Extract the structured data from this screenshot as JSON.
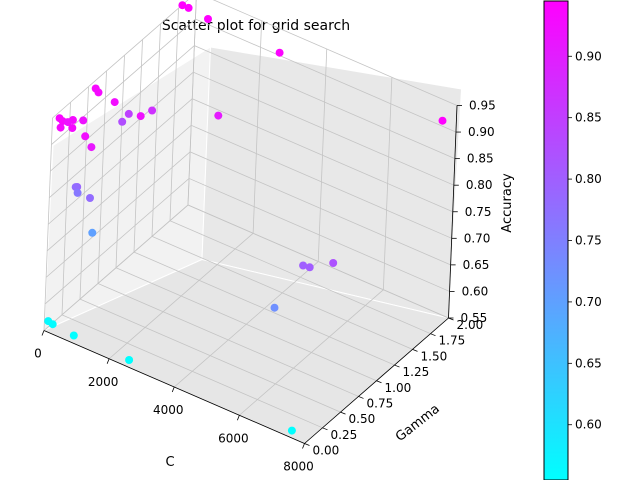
{
  "chart_data": {
    "type": "scatter",
    "title": "Scatter plot for grid search",
    "xlabel": "C",
    "ylabel": "Gamma",
    "zlabel": "Accuracy",
    "xlim": [
      0,
      8000
    ],
    "ylim": [
      0,
      2
    ],
    "zlim": [
      0.55,
      0.95
    ],
    "x_ticks": [
      "0",
      "2000",
      "4000",
      "6000",
      "8000"
    ],
    "y_ticks": [
      "0.00",
      "0.25",
      "0.50",
      "0.75",
      "1.00",
      "1.25",
      "1.50",
      "1.75",
      "2.00"
    ],
    "z_ticks": [
      "0.55",
      "0.60",
      "0.65",
      "0.70",
      "0.75",
      "0.80",
      "0.85",
      "0.90",
      "0.95"
    ],
    "colormap": "cool",
    "colorbar": {
      "range": [
        0.555,
        0.945
      ],
      "ticks": [
        "0.60",
        "0.65",
        "0.70",
        "0.75",
        "0.80",
        "0.85",
        "0.90"
      ]
    },
    "grid": true,
    "points": [
      {
        "x": 5,
        "y": 0.1,
        "z": 0.938
      },
      {
        "x": 100,
        "y": 0.1,
        "z": 0.935
      },
      {
        "x": 400,
        "y": 0.1,
        "z": 0.93
      },
      {
        "x": 800,
        "y": 0.1,
        "z": 0.925
      },
      {
        "x": 200,
        "y": 0.2,
        "z": 0.928
      },
      {
        "x": 50,
        "y": 0.2,
        "z": 0.92
      },
      {
        "x": 300,
        "y": 0.3,
        "z": 0.918
      },
      {
        "x": 1000,
        "y": 0.1,
        "z": 0.91
      },
      {
        "x": 150,
        "y": 0.05,
        "z": 0.93
      },
      {
        "x": 10,
        "y": 0.6,
        "z": 0.935
      },
      {
        "x": 100,
        "y": 0.6,
        "z": 0.93
      },
      {
        "x": 600,
        "y": 0.6,
        "z": 0.925
      },
      {
        "x": 1400,
        "y": 0.6,
        "z": 0.92
      },
      {
        "x": 200,
        "y": 1.0,
        "z": 0.845
      },
      {
        "x": 900,
        "y": 1.0,
        "z": 0.87
      },
      {
        "x": 10,
        "y": 1.0,
        "z": 0.825
      },
      {
        "x": 2800,
        "y": 1.05,
        "z": 0.905
      },
      {
        "x": 10,
        "y": 1.8,
        "z": 0.95
      },
      {
        "x": 200,
        "y": 1.8,
        "z": 0.95
      },
      {
        "x": 800,
        "y": 1.8,
        "z": 0.945
      },
      {
        "x": 3000,
        "y": 1.8,
        "z": 0.94
      },
      {
        "x": 8000,
        "y": 1.8,
        "z": 0.945
      },
      {
        "x": 200,
        "y": 0.3,
        "z": 0.79
      },
      {
        "x": 50,
        "y": 0.35,
        "z": 0.78
      },
      {
        "x": 600,
        "y": 0.3,
        "z": 0.78
      },
      {
        "x": 10,
        "y": 0.4,
        "z": 0.762
      },
      {
        "x": 500,
        "y": 0.4,
        "z": 0.7
      },
      {
        "x": 6800,
        "y": 0.45,
        "z": 0.8
      },
      {
        "x": 7000,
        "y": 0.45,
        "z": 0.802
      },
      {
        "x": 7600,
        "y": 0.5,
        "z": 0.82
      },
      {
        "x": 6300,
        "y": 0.3,
        "z": 0.725
      },
      {
        "x": 10,
        "y": 0.05,
        "z": 0.562
      },
      {
        "x": 150,
        "y": 0.05,
        "z": 0.56
      },
      {
        "x": 800,
        "y": 0.05,
        "z": 0.556
      },
      {
        "x": 2500,
        "y": 0.05,
        "z": 0.555
      },
      {
        "x": 7500,
        "y": 0.05,
        "z": 0.555
      }
    ]
  }
}
